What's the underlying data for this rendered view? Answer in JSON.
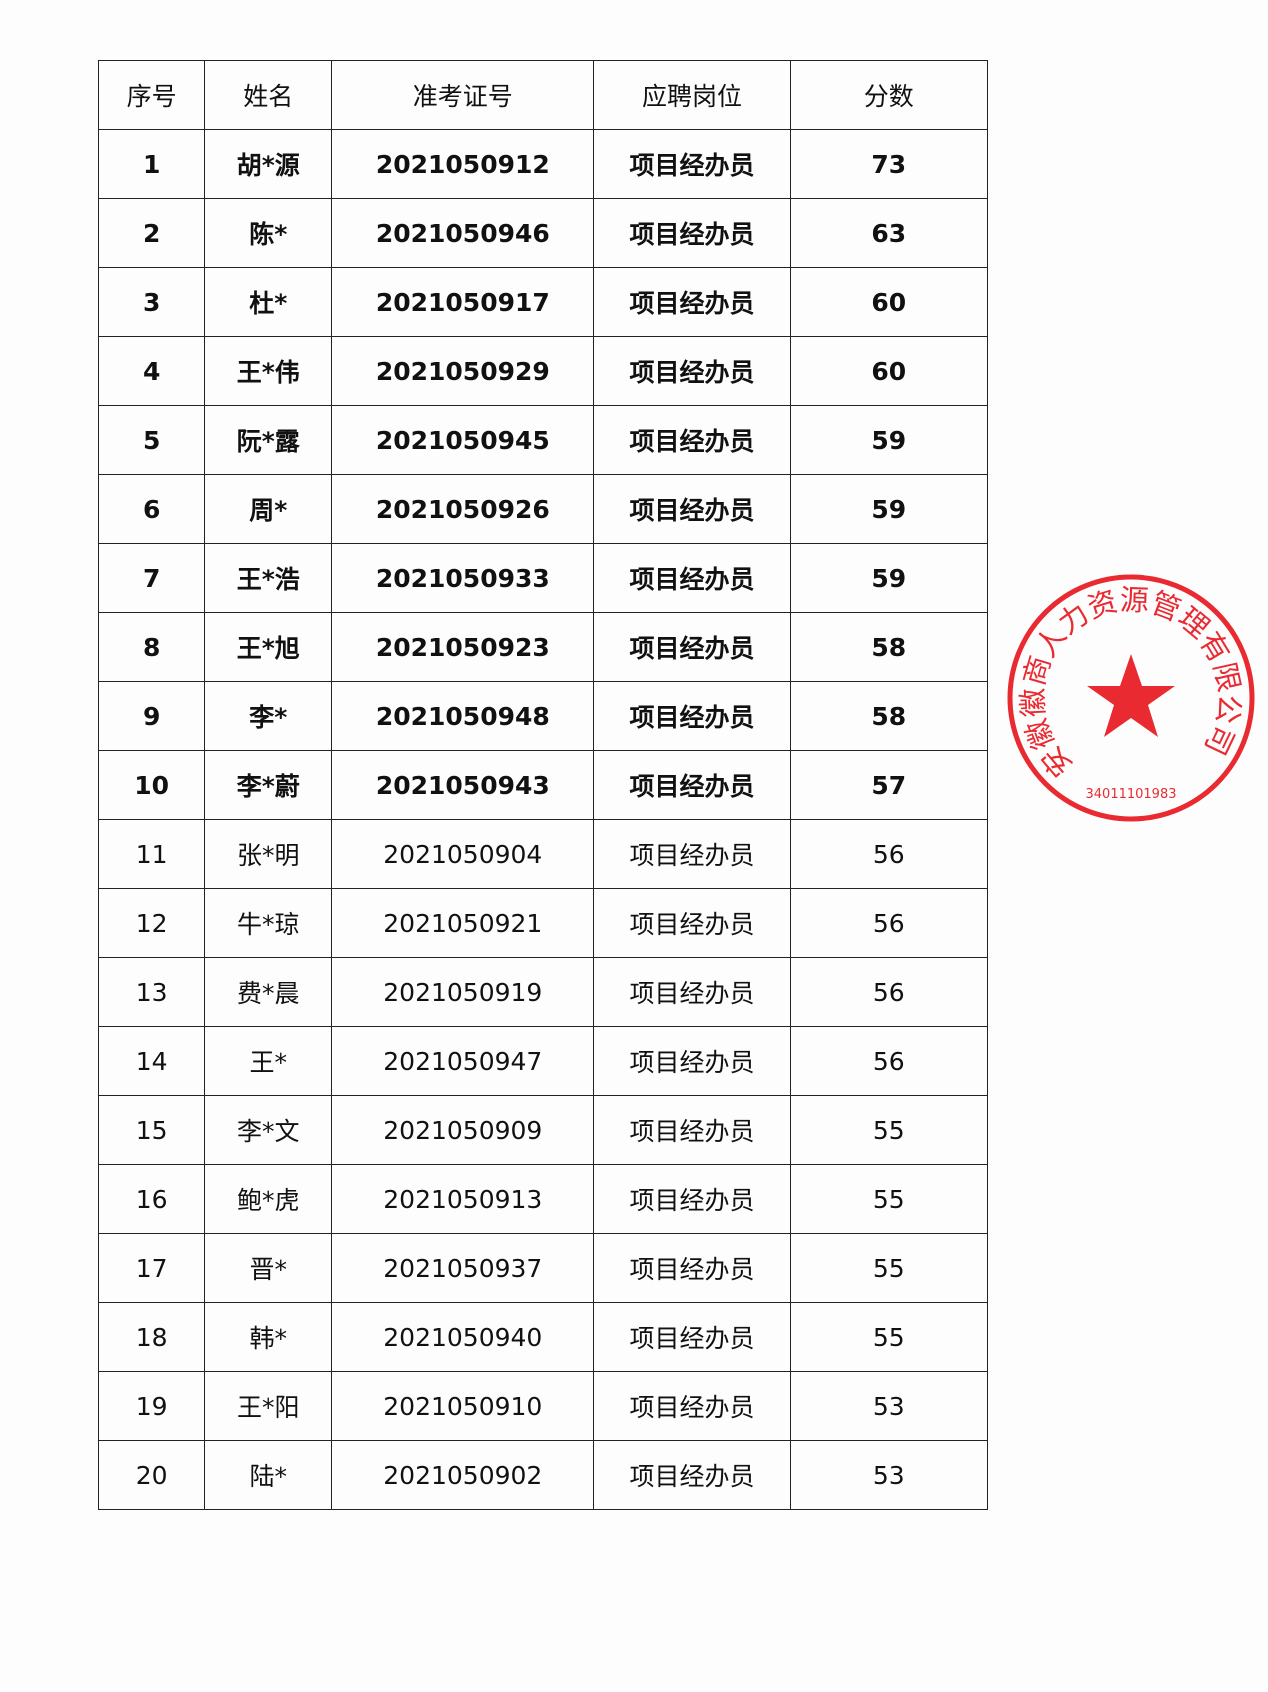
{
  "table": {
    "headers": [
      "序号",
      "姓名",
      "准考证号",
      "应聘岗位",
      "分数"
    ],
    "rows": [
      [
        "1",
        "胡*源",
        "2021050912",
        "项目经办员",
        "73"
      ],
      [
        "2",
        "陈*",
        "2021050946",
        "项目经办员",
        "63"
      ],
      [
        "3",
        "杜*",
        "2021050917",
        "项目经办员",
        "60"
      ],
      [
        "4",
        "王*伟",
        "2021050929",
        "项目经办员",
        "60"
      ],
      [
        "5",
        "阮*露",
        "2021050945",
        "项目经办员",
        "59"
      ],
      [
        "6",
        "周*",
        "2021050926",
        "项目经办员",
        "59"
      ],
      [
        "7",
        "王*浩",
        "2021050933",
        "项目经办员",
        "59"
      ],
      [
        "8",
        "王*旭",
        "2021050923",
        "项目经办员",
        "58"
      ],
      [
        "9",
        "李*",
        "2021050948",
        "项目经办员",
        "58"
      ],
      [
        "10",
        "李*蔚",
        "2021050943",
        "项目经办员",
        "57"
      ],
      [
        "11",
        "张*明",
        "2021050904",
        "项目经办员",
        "56"
      ],
      [
        "12",
        "牛*琼",
        "2021050921",
        "项目经办员",
        "56"
      ],
      [
        "13",
        "费*晨",
        "2021050919",
        "项目经办员",
        "56"
      ],
      [
        "14",
        "王*",
        "2021050947",
        "项目经办员",
        "56"
      ],
      [
        "15",
        "李*文",
        "2021050909",
        "项目经办员",
        "55"
      ],
      [
        "16",
        "鲍*虎",
        "2021050913",
        "项目经办员",
        "55"
      ],
      [
        "17",
        "晋*",
        "2021050937",
        "项目经办员",
        "55"
      ],
      [
        "18",
        "韩*",
        "2021050940",
        "项目经办员",
        "55"
      ],
      [
        "19",
        "王*阳",
        "2021050910",
        "项目经办员",
        "53"
      ],
      [
        "20",
        "陆*",
        "2021050902",
        "项目经办员",
        "53"
      ]
    ],
    "bold_rows": 10
  },
  "stamp": {
    "text": "安徽徽商人力资源管理有限公司",
    "code": "34011101983",
    "color": "#e8141c"
  }
}
